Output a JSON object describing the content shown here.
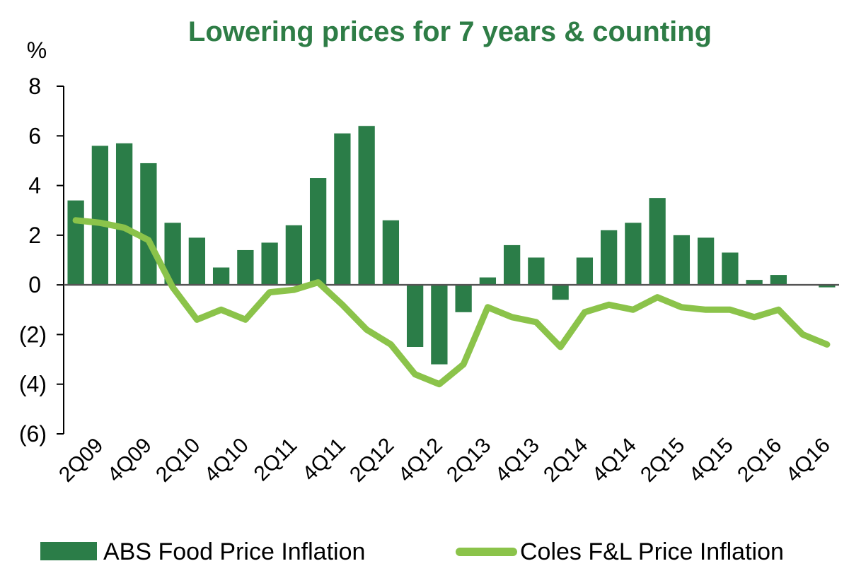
{
  "chart_data": {
    "type": "bar",
    "title": "Lowering prices for 7 years & counting",
    "title_color": "#2e7d46",
    "ylabel": "%",
    "xlabel": "",
    "ylim": [
      -6,
      8
    ],
    "yticks": [
      8,
      6,
      4,
      2,
      0,
      -2,
      -4,
      -6
    ],
    "ytick_labels": [
      "8",
      "6",
      "4",
      "2",
      "0",
      "(2)",
      "(4)",
      "(6)"
    ],
    "grid": false,
    "legend_position": "bottom",
    "categories": [
      "1Q09",
      "2Q09",
      "3Q09",
      "4Q09",
      "1Q10",
      "2Q10",
      "3Q10",
      "4Q10",
      "1Q11",
      "2Q11",
      "3Q11",
      "4Q11",
      "1Q12",
      "2Q12",
      "3Q12",
      "4Q12",
      "1Q13",
      "2Q13",
      "3Q13",
      "4Q13",
      "1Q14",
      "2Q14",
      "3Q14",
      "4Q14",
      "1Q15",
      "2Q15",
      "3Q15",
      "4Q15",
      "1Q16",
      "2Q16",
      "3Q16",
      "4Q16"
    ],
    "xtick_labels": [
      "2Q09",
      "4Q09",
      "2Q10",
      "4Q10",
      "2Q11",
      "4Q11",
      "2Q12",
      "4Q12",
      "2Q13",
      "4Q13",
      "2Q14",
      "4Q14",
      "2Q15",
      "4Q15",
      "2Q16",
      "4Q16"
    ],
    "series": [
      {
        "name": "ABS Food Price Inflation",
        "kind": "bar",
        "color": "#2b7d48",
        "values": [
          3.4,
          5.6,
          5.7,
          4.9,
          2.5,
          1.9,
          0.7,
          1.4,
          1.7,
          2.4,
          4.3,
          6.1,
          6.4,
          2.6,
          -2.5,
          -3.2,
          -1.1,
          0.3,
          1.6,
          1.1,
          -0.6,
          1.1,
          2.2,
          2.5,
          3.5,
          2.0,
          1.9,
          1.3,
          0.2,
          0.4,
          0.0,
          -0.1
        ]
      },
      {
        "name": "Coles F&L Price Inflation",
        "kind": "line",
        "color": "#8bc34a",
        "values": [
          2.6,
          2.5,
          2.3,
          1.8,
          -0.1,
          -1.4,
          -1.0,
          -1.4,
          -0.3,
          -0.2,
          0.1,
          -0.8,
          -1.8,
          -2.4,
          -3.6,
          -4.0,
          -3.2,
          -0.9,
          -1.3,
          -1.5,
          -2.5,
          -1.1,
          -0.8,
          -1.0,
          -0.5,
          -0.9,
          -1.0,
          -1.0,
          -1.3,
          -1.0,
          -2.0,
          -2.4
        ]
      }
    ]
  }
}
